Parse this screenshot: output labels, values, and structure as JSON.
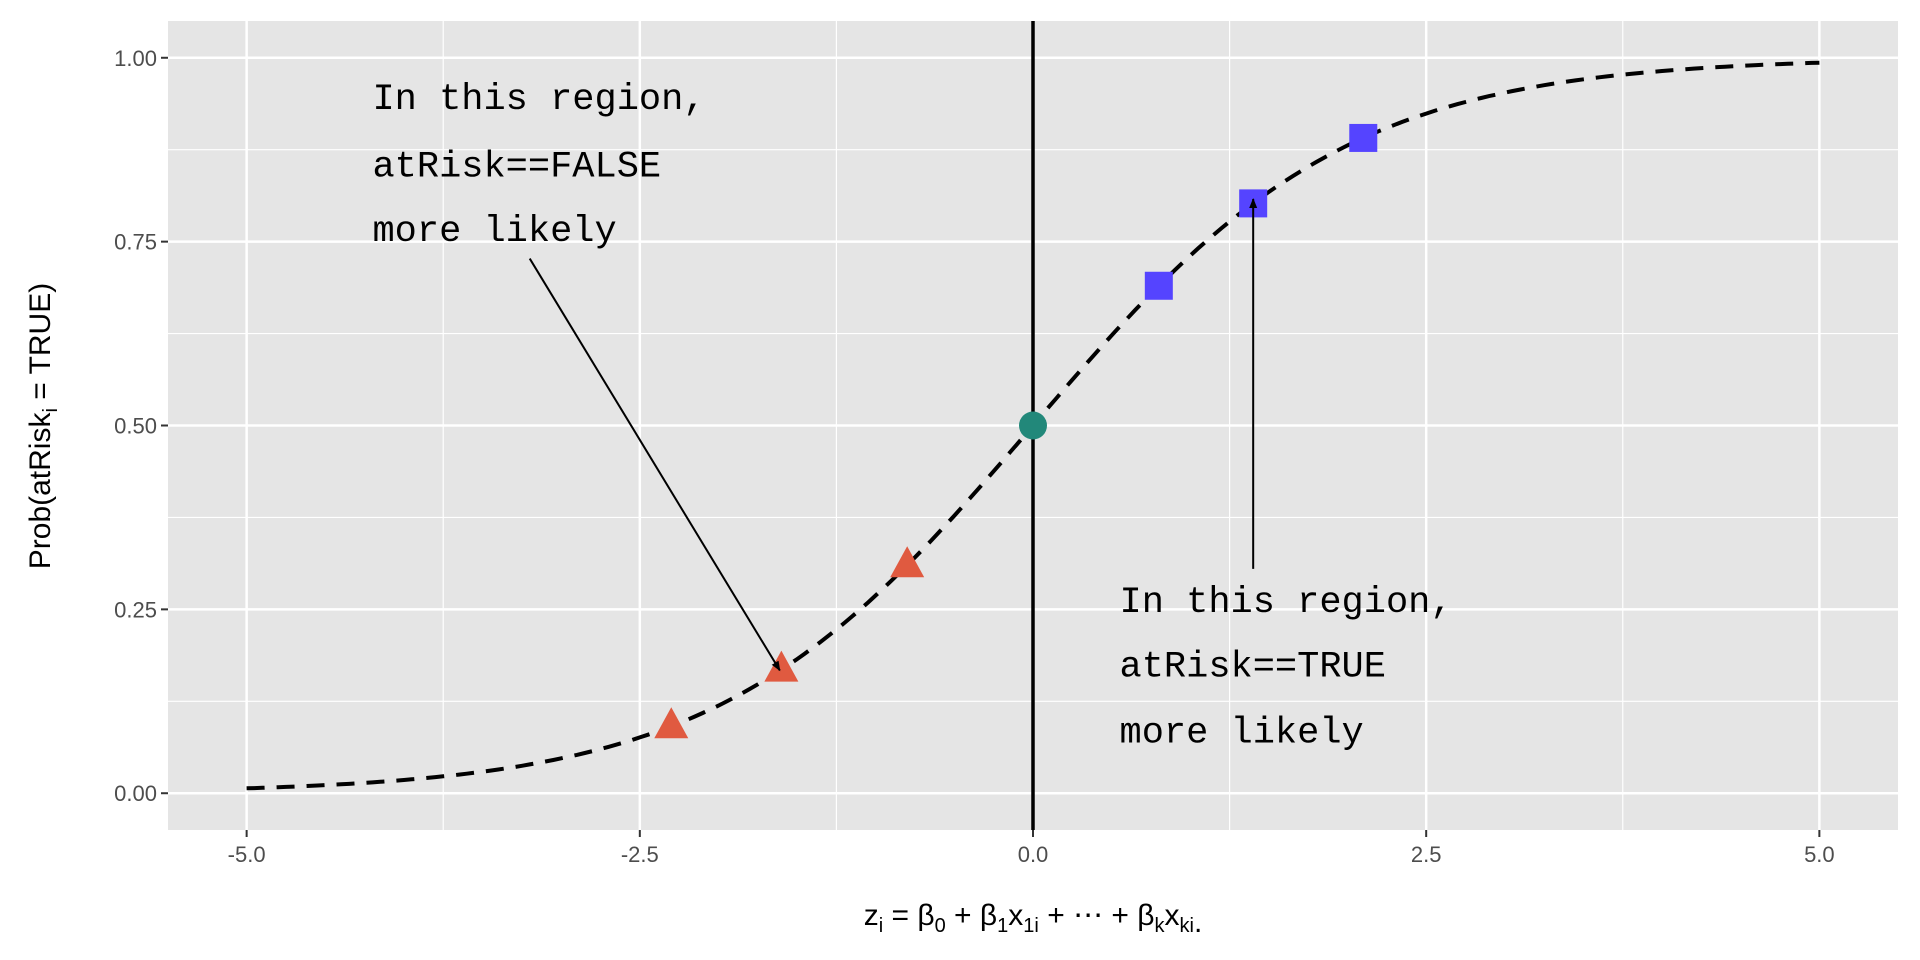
{
  "chart_data": {
    "type": "line",
    "title": "",
    "xlabel": "z_i = β0 + β1x1i + ⋯ + βkxki.",
    "xlabel_parts": {
      "z": "z",
      "i": "i",
      "eq": " = β",
      "b0": "0",
      "p1": " + β",
      "b1": "1",
      "x1": "x",
      "x1s": "1i",
      "mid": " + ⋯ + β",
      "bk": "k",
      "xk": "x",
      "xks": "ki",
      "end": "."
    },
    "ylabel_parts": {
      "pre": "Prob(atRisk",
      "sub": "i",
      "post": " = TRUE)"
    },
    "xlim": [
      -5.5,
      5.5
    ],
    "ylim": [
      -0.05,
      1.05
    ],
    "x_ticks": [
      -5,
      -2.5,
      0,
      2.5,
      5
    ],
    "x_tick_labels": [
      "-5.0",
      "-2.5",
      "0.0",
      "2.5",
      "5.0"
    ],
    "y_ticks": [
      0,
      0.25,
      0.5,
      0.75,
      1
    ],
    "y_tick_labels": [
      "0.00",
      "0.25",
      "0.50",
      "0.75",
      "1.00"
    ],
    "curve": {
      "name": "logistic",
      "function": "1/(1+exp(-z))",
      "x_range": [
        -5,
        5
      ],
      "style": "dashed",
      "color": "#000000"
    },
    "vline": {
      "x": 0,
      "color": "#000000"
    },
    "points": [
      {
        "x": -2.3,
        "y": 0.091,
        "shape": "triangle",
        "color": "#E05A40"
      },
      {
        "x": -1.6,
        "y": 0.168,
        "shape": "triangle",
        "color": "#E05A40"
      },
      {
        "x": -0.8,
        "y": 0.31,
        "shape": "triangle",
        "color": "#E05A40"
      },
      {
        "x": 0,
        "y": 0.5,
        "shape": "circle",
        "color": "#22887A"
      },
      {
        "x": 0.8,
        "y": 0.69,
        "shape": "square",
        "color": "#5544FF"
      },
      {
        "x": 1.4,
        "y": 0.802,
        "shape": "square",
        "color": "#5544FF"
      },
      {
        "x": 2.1,
        "y": 0.891,
        "shape": "square",
        "color": "#5544FF"
      }
    ],
    "annotations": [
      {
        "lines": [
          "In this region,",
          "atRisk==FALSE",
          "more likely"
        ],
        "x": -4.2,
        "y": [
          0.947,
          0.855,
          0.767
        ],
        "arrow_from": [
          -3.2,
          0.727
        ],
        "arrow_to": [
          -1.61,
          0.167
        ]
      },
      {
        "lines": [
          "In this region,",
          "atRisk==TRUE",
          "more likely"
        ],
        "x": 0.55,
        "y": [
          0.263,
          0.175,
          0.085
        ],
        "arrow_from": [
          1.4,
          0.305
        ],
        "arrow_to": [
          1.4,
          0.808
        ]
      }
    ],
    "grid": true,
    "panel_background": "#E5E5E5"
  }
}
